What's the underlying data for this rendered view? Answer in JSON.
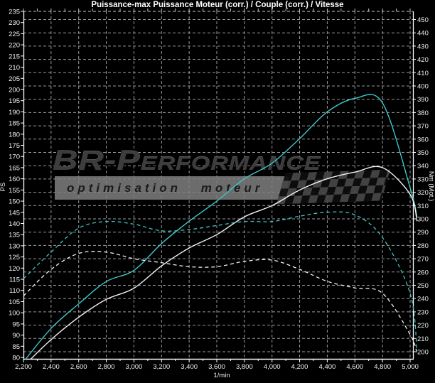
{
  "chart_data": {
    "type": "line",
    "title": "Puissance-max Puissance Moteur (corr.) / Couple (corr.) / Vitesse",
    "x_axis": {
      "label": "1/min",
      "min": 2200,
      "max": 5000,
      "tick_step": 200,
      "minor_tick_step": 100,
      "tick_values": [
        2200,
        2400,
        2600,
        2800,
        3000,
        3200,
        3400,
        3600,
        3800,
        4000,
        4200,
        4400,
        4600,
        4800,
        5000
      ],
      "tick_labels": [
        "2,200",
        "2,400",
        "2,600",
        "2,800",
        "3,000",
        "3,200",
        "3,400",
        "3,600",
        "3,800",
        "4,000",
        "4,200",
        "4,400",
        "4,600",
        "4,800",
        "5,000"
      ]
    },
    "y_axis_left": {
      "label": "PS",
      "min": 80,
      "max": 235,
      "tick_step": 5
    },
    "y_axis_right": {
      "label": "Nm (Mot.)",
      "min": 200,
      "max": 450,
      "tick_step": 10
    },
    "rpm": [
      2200,
      2400,
      2600,
      2800,
      3000,
      3200,
      3400,
      3600,
      3800,
      4000,
      4200,
      4400,
      4600,
      4800,
      5000,
      5050
    ],
    "series": [
      {
        "name": "power-run1",
        "axis": "left",
        "unit": "PS",
        "style": "solid",
        "color": "#3fc6c6",
        "values": [
          78,
          93,
          104,
          114,
          119,
          131,
          141,
          150,
          160,
          167,
          178,
          190,
          196,
          194,
          156,
          143
        ]
      },
      {
        "name": "power-run2",
        "axis": "left",
        "unit": "PS",
        "style": "solid",
        "color": "#f2f2f2",
        "values": [
          76,
          88,
          98,
          106,
          111,
          121,
          129,
          135,
          143,
          148,
          155,
          160,
          163,
          165,
          153,
          141
        ]
      },
      {
        "name": "torque-run1",
        "axis": "right",
        "unit": "Nm",
        "style": "dashed",
        "color": "#3fc6c6",
        "values": [
          255,
          275,
          293,
          298,
          296,
          291,
          292,
          295,
          298,
          298,
          302,
          305,
          303,
          286,
          244,
          201
        ]
      },
      {
        "name": "torque-run2",
        "axis": "right",
        "unit": "Nm",
        "style": "dashed",
        "color": "#f2f2f2",
        "values": [
          242,
          262,
          274,
          275,
          270,
          267,
          264,
          264,
          268,
          269,
          262,
          253,
          248,
          244,
          213,
          199
        ]
      }
    ],
    "grid": "dashed",
    "legend_position": "none"
  },
  "watermark": {
    "brand": "BR-Performance",
    "tagline": "optimisation moteur"
  },
  "colors": {
    "background": "#000000",
    "grid": "#9a9a9a",
    "axis": "#ffffff",
    "tick_label": "#f0f0f0",
    "curve_cyan": "#3fc6c6",
    "curve_white": "#f2f2f2"
  }
}
